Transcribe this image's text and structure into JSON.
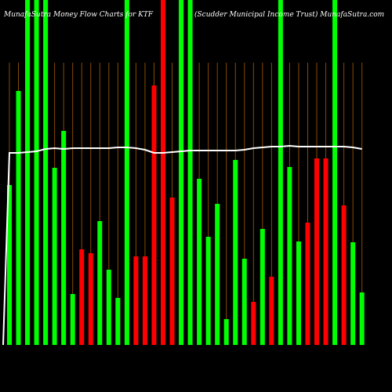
{
  "chart_data": {
    "type": "bar",
    "title": "MunafaSutra Money Flow Charts for KTF",
    "subtitle": "(Scudder Municipal Income Trust) MunafaSutra.com",
    "values": [
      204,
      324,
      440,
      440,
      440,
      226,
      273,
      65,
      122,
      117,
      158,
      96,
      60,
      440,
      113,
      113,
      331,
      440,
      188,
      440,
      440,
      212,
      138,
      180,
      33,
      236,
      110,
      55,
      148,
      87,
      440,
      227,
      132,
      156,
      238,
      238,
      440,
      178,
      131,
      67
    ],
    "colors": [
      "#00ff00",
      "#00ff00",
      "#00ff00",
      "#00ff00",
      "#00ff00",
      "#00ff00",
      "#00ff00",
      "#00ff00",
      "#ff0000",
      "#ff0000",
      "#00ff00",
      "#00ff00",
      "#00ff00",
      "#00ff00",
      "#ff0000",
      "#ff0000",
      "#ff0000",
      "#ff0000",
      "#ff0000",
      "#00ff00",
      "#00ff00",
      "#00ff00",
      "#00ff00",
      "#00ff00",
      "#00ff00",
      "#00ff00",
      "#00ff00",
      "#ff0000",
      "#00ff00",
      "#ff0000",
      "#00ff00",
      "#00ff00",
      "#00ff00",
      "#ff0000",
      "#ff0000",
      "#ff0000",
      "#00ff00",
      "#ff0000",
      "#00ff00",
      "#00ff00"
    ],
    "line": {
      "color": "#ffffff",
      "values": [
        0,
        245,
        245,
        246,
        247,
        250,
        251,
        250,
        251,
        251,
        251,
        251,
        251,
        252,
        252,
        251,
        249,
        245,
        245,
        246,
        247,
        248,
        248,
        248,
        248,
        248,
        248,
        249,
        251,
        252,
        253,
        253,
        254,
        253,
        253,
        253,
        253,
        253,
        253,
        252,
        250
      ]
    },
    "ylim": [
      0,
      440
    ]
  }
}
